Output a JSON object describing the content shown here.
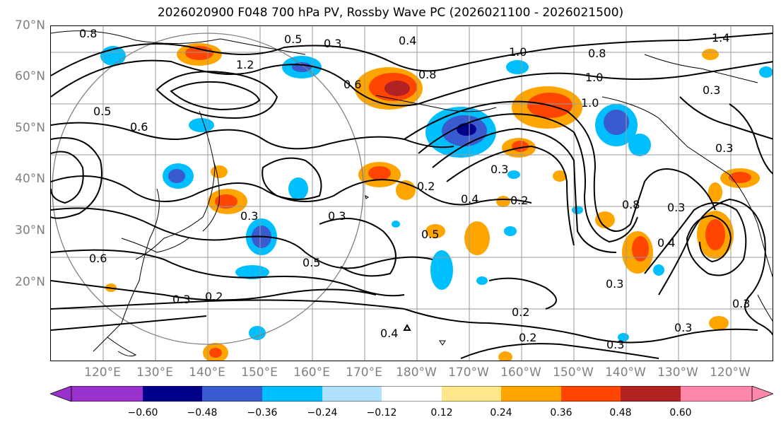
{
  "title": "2026020900 F048 700 hPa PV, Rossby Wave PC (2026021100 - 2026021500)",
  "lat_labels": [
    "70°N",
    "60°N",
    "50°N",
    "40°N",
    "30°N",
    "20°N"
  ],
  "lon_labels": [
    "120°E",
    "130°E",
    "140°E",
    "150°E",
    "160°E",
    "170°E",
    "180°W",
    "170°W",
    "160°W",
    "150°W",
    "140°W",
    "130°W",
    "120°W"
  ],
  "colorbar": {
    "ticks": [
      "−0.60",
      "−0.48",
      "−0.36",
      "−0.24",
      "−0.12",
      "0.12",
      "0.24",
      "0.36",
      "0.48",
      "0.60"
    ],
    "colors": [
      "#9932cc",
      "#00008b",
      "#3a5bcf",
      "#00bfff",
      "#b0e2ff",
      "#ffffff",
      "#ffe68a",
      "#ffa500",
      "#ff4500",
      "#b22222",
      "#ff88aa"
    ]
  },
  "contour_labels": [
    "0.8",
    "0.5",
    "0.3",
    "0.4",
    "1.4",
    "1.2",
    "0.6",
    "0.8",
    "1.0",
    "0.8",
    "1.0",
    "0.5",
    "0.6",
    "1.0",
    "0.3",
    "0.2",
    "0.4",
    "0.3",
    "0.2",
    "0.8",
    "0.3",
    "0.3",
    "0.3",
    "0.5",
    "0.5",
    "0.3",
    "0.2",
    "0.3",
    "0.2",
    "0.4",
    "0.2",
    "0.3",
    "0.4",
    "0.3",
    "0.3",
    "0.6",
    "0.3"
  ]
}
